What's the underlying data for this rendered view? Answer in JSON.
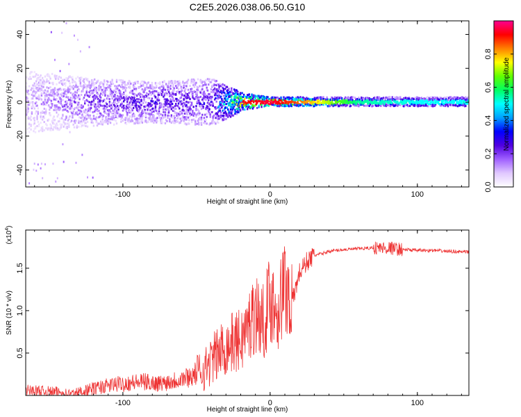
{
  "figure_title": "C2E5.2026.038.06.50.G10",
  "chart_data": [
    {
      "type": "heatmap",
      "title": "C2E5.2026.038.06.50.G10",
      "xlabel": "Height of straight line (km)",
      "ylabel": "Frequency (Hz)",
      "xlim": [
        -166,
        135
      ],
      "ylim": [
        -50,
        48
      ],
      "xticks": [
        -100,
        0,
        100
      ],
      "xtick_labels": [
        "-100",
        "0",
        "100"
      ],
      "yticks": [
        -40,
        -20,
        0,
        20,
        40
      ],
      "ytick_labels": [
        "-40",
        "-20",
        "0",
        "20",
        "40"
      ],
      "colorbar": {
        "label": "Normalized spectral amplitude",
        "range": [
          0,
          1
        ],
        "ticks": [
          0,
          0.2,
          0.4,
          0.6,
          0.8
        ],
        "tick_labels": [
          "0.0",
          "0.2",
          "0.4",
          "0.6",
          "0.8"
        ],
        "colors": [
          "#ffffff",
          "#e0c8ff",
          "#a060ff",
          "#5000e0",
          "#0000ff",
          "#00a0ff",
          "#00ffff",
          "#00ff60",
          "#60ff00",
          "#ffff00",
          "#ff8000",
          "#ff0000",
          "#ff0090"
        ]
      },
      "description_points": [
        {
          "x": -160,
          "freq_spread": 18,
          "intensity": 0.15
        },
        {
          "x": -120,
          "freq_spread": 14,
          "intensity": 0.25
        },
        {
          "x": -80,
          "freq_spread": 12,
          "intensity": 0.3
        },
        {
          "x": -40,
          "freq_spread": 14,
          "intensity": 0.3
        },
        {
          "x": -20,
          "freq_spread": 6,
          "intensity": 0.9
        },
        {
          "x": 0,
          "freq_spread": 3,
          "intensity": 0.95
        },
        {
          "x": 20,
          "freq_spread": 3,
          "intensity": 0.85
        },
        {
          "x": 60,
          "freq_spread": 3,
          "intensity": 0.55
        },
        {
          "x": 100,
          "freq_spread": 3,
          "intensity": 0.5
        },
        {
          "x": 135,
          "freq_spread": 3,
          "intensity": 0.5
        }
      ]
    },
    {
      "type": "line",
      "title": "",
      "xlabel": "Height of straight line (km)",
      "ylabel": "SNR (10 * v/v)",
      "y_multiplier": "(x10⁴)",
      "y_multiplier_base": "(x10",
      "y_multiplier_exp": "4",
      "y_multiplier_close": ")",
      "xlim": [
        -166,
        135
      ],
      "ylim": [
        0,
        1.95
      ],
      "xticks": [
        -100,
        0,
        100
      ],
      "xtick_labels": [
        "-100",
        "0",
        "100"
      ],
      "yticks": [
        0.5,
        1.0,
        1.5
      ],
      "ytick_labels": [
        "0.5",
        "1.0",
        "1.5"
      ],
      "color": "#ee3333",
      "series": [
        {
          "name": "SNR",
          "x": [
            -166,
            -155,
            -145,
            -135,
            -125,
            -115,
            -105,
            -95,
            -85,
            -75,
            -65,
            -55,
            -45,
            -38,
            -32,
            -26,
            -20,
            -15,
            -10,
            -5,
            0,
            5,
            10,
            15,
            20,
            25,
            30,
            35,
            40,
            50,
            60,
            70,
            80,
            90,
            100,
            110,
            120,
            135
          ],
          "y": [
            0.06,
            0.05,
            0.04,
            0.02,
            0.06,
            0.1,
            0.13,
            0.15,
            0.16,
            0.14,
            0.18,
            0.22,
            0.3,
            0.45,
            0.55,
            0.62,
            0.65,
            0.8,
            1.0,
            0.85,
            1.15,
            1.0,
            1.3,
            1.1,
            1.45,
            1.58,
            1.65,
            1.67,
            1.7,
            1.72,
            1.73,
            1.74,
            1.74,
            1.72,
            1.71,
            1.71,
            1.7,
            1.69
          ]
        }
      ]
    }
  ]
}
